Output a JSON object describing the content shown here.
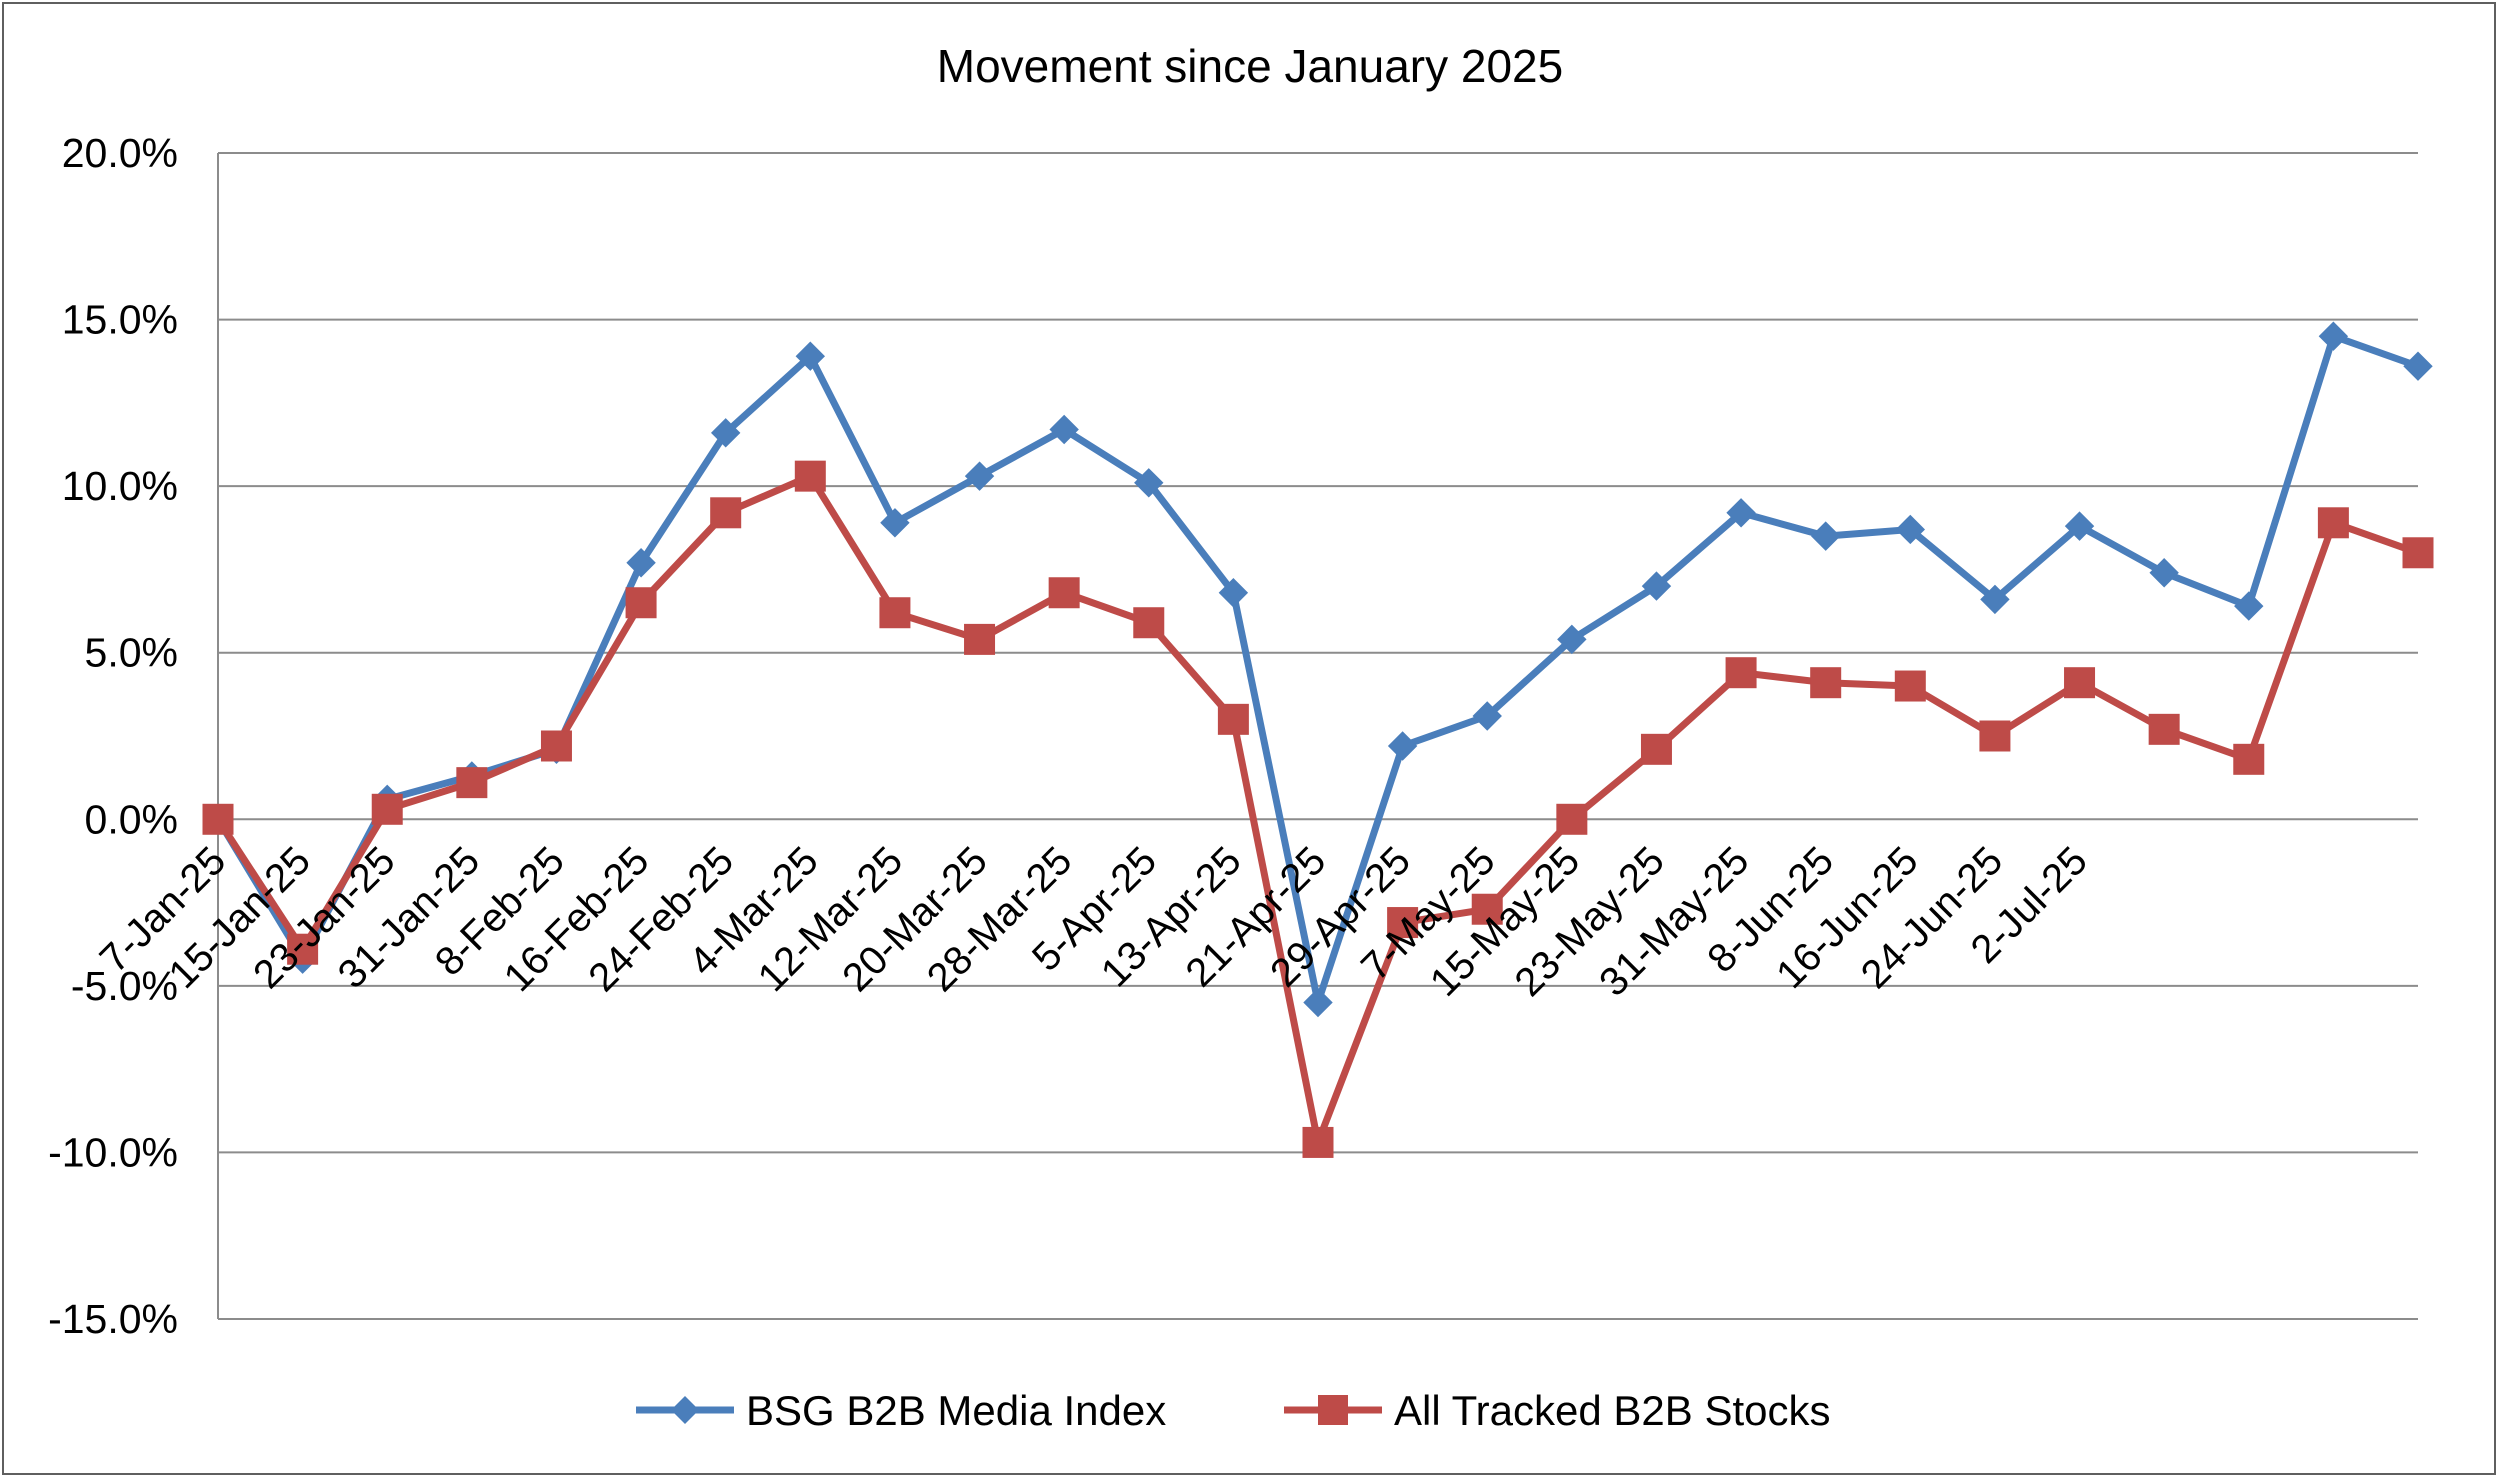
{
  "chart_data": {
    "type": "line",
    "title": "Movement since January 2025",
    "xlabel": "",
    "ylabel": "",
    "ylim": [
      -15.0,
      20.0
    ],
    "y_ticks": [
      "20.0%",
      "15.0%",
      "10.0%",
      "5.0%",
      "0.0%",
      "-5.0%",
      "-10.0%",
      "-15.0%"
    ],
    "y_tick_values": [
      20,
      15,
      10,
      5,
      0,
      -5,
      -10,
      -15
    ],
    "x_tick_labels": [
      "7-Jan-25",
      "15-Jan-25",
      "23-Jan-25",
      "31-Jan-25",
      "8-Feb-25",
      "16-Feb-25",
      "24-Feb-25",
      "4-Mar-25",
      "12-Mar-25",
      "20-Mar-25",
      "28-Mar-25",
      "5-Apr-25",
      "13-Apr-25",
      "21-Apr-25",
      "29-Apr-25",
      "7-May-25",
      "15-May-25",
      "23-May-25",
      "31-May-25",
      "8-Jun-25",
      "16-Jun-25",
      "24-Jun-25",
      "2-Jul-25"
    ],
    "point_count": 27,
    "grid": true,
    "legend_position": "bottom",
    "series": [
      {
        "name": "BSG B2B Media Index",
        "color": "#4a7ebb",
        "marker": "diamond",
        "values": [
          0.0,
          -4.2,
          0.6,
          1.3,
          2.1,
          7.7,
          11.6,
          13.9,
          8.9,
          10.3,
          11.7,
          10.1,
          6.8,
          -5.5,
          2.2,
          3.1,
          5.4,
          7.0,
          9.2,
          8.5,
          8.7,
          6.6,
          8.8,
          7.4,
          6.4,
          14.5,
          13.6
        ]
      },
      {
        "name": "All Tracked B2B Stocks",
        "color": "#be4b48",
        "marker": "square",
        "values": [
          0.0,
          -3.9,
          0.3,
          1.1,
          2.2,
          6.5,
          9.2,
          10.3,
          6.2,
          5.4,
          6.8,
          5.9,
          3.0,
          -9.7,
          -3.1,
          -2.7,
          0.0,
          2.1,
          4.4,
          4.1,
          4.0,
          2.5,
          4.1,
          2.7,
          1.8,
          8.9,
          8.0
        ]
      }
    ]
  }
}
